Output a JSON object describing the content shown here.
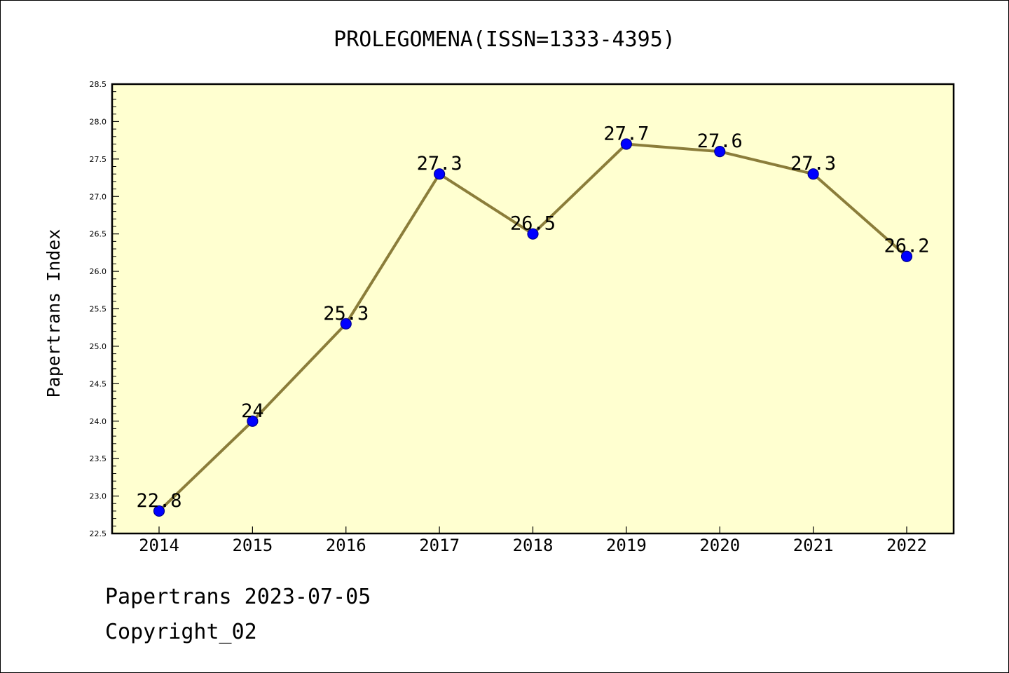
{
  "chart_data": {
    "type": "line",
    "title": "PROLEGOMENA(ISSN=1333-4395)",
    "ylabel": "Papertrans Index",
    "xlabel": "",
    "categories": [
      "2014",
      "2015",
      "2016",
      "2017",
      "2018",
      "2019",
      "2020",
      "2021",
      "2022"
    ],
    "values": [
      22.8,
      24,
      25.3,
      27.3,
      26.5,
      27.7,
      27.6,
      27.3,
      26.2
    ],
    "data_labels": [
      "22.8",
      "24",
      "25.3",
      "27.3",
      "26.5",
      "27.7",
      "27.6",
      "27.3",
      "26.2"
    ],
    "ylim": [
      22.5,
      28.5
    ],
    "yticks": [
      "22.5",
      "23.0",
      "23.5",
      "24.0",
      "24.5",
      "25.0",
      "25.5",
      "26.0",
      "26.5",
      "27.0",
      "27.5",
      "28.0",
      "28.5"
    ],
    "grid": false,
    "colors": {
      "plot_background": "#ffffd0",
      "line": "#8b7d3a",
      "marker": "#0000ff",
      "marker_edge": "#00008b"
    }
  },
  "footer": {
    "line1": "Papertrans 2023-07-05",
    "line2": "Copyright_02"
  }
}
